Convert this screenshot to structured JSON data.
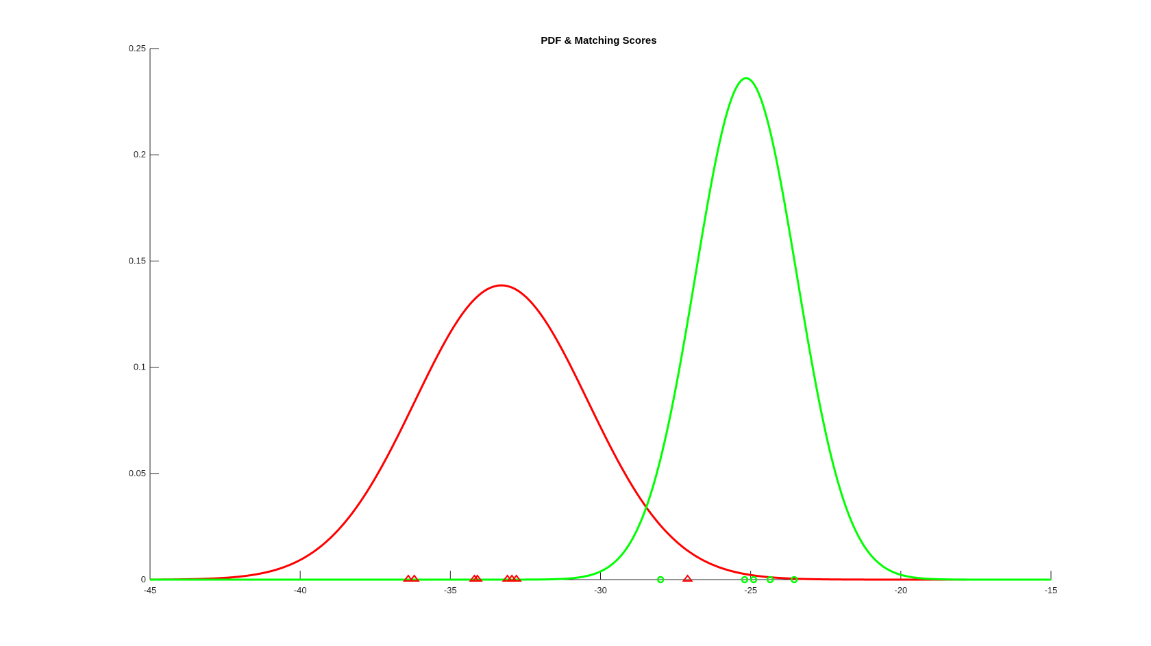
{
  "chart_data": {
    "type": "line",
    "title": "PDF & Matching Scores",
    "xlabel": "",
    "ylabel": "",
    "xlim": [
      -45,
      -15
    ],
    "ylim": [
      0,
      0.25
    ],
    "xticks": [
      -45,
      -40,
      -35,
      -30,
      -25,
      -20,
      -15
    ],
    "xtick_labels": [
      "-45",
      "-40",
      "-35",
      "-30",
      "-25",
      "-20",
      "-15"
    ],
    "yticks": [
      0,
      0.05,
      0.1,
      0.15,
      0.2,
      0.25
    ],
    "ytick_labels": [
      "0",
      "0.05",
      "0.1",
      "0.15",
      "0.2",
      "0.25"
    ],
    "grid": false,
    "legend": "none",
    "series": [
      {
        "kind": "normal-pdf-curve",
        "color": "#ff0000",
        "mean": -33.3,
        "std": 2.88
      },
      {
        "kind": "normal-pdf-curve",
        "color": "#00ff00",
        "mean": -25.15,
        "std": 1.69
      },
      {
        "kind": "score-markers",
        "marker": "triangle",
        "color": "#ff0000",
        "x": [
          -36.4,
          -36.2,
          -34.2,
          -34.1,
          -33.1,
          -32.95,
          -32.8,
          -27.1
        ],
        "y": [
          0,
          0,
          0,
          0,
          0,
          0,
          0,
          0
        ]
      },
      {
        "kind": "score-markers",
        "marker": "circle",
        "color": "#00ff00",
        "x": [
          -28.0,
          -25.2,
          -24.9,
          -24.35,
          -23.55
        ],
        "y": [
          0,
          0,
          0,
          0,
          0
        ]
      }
    ]
  }
}
